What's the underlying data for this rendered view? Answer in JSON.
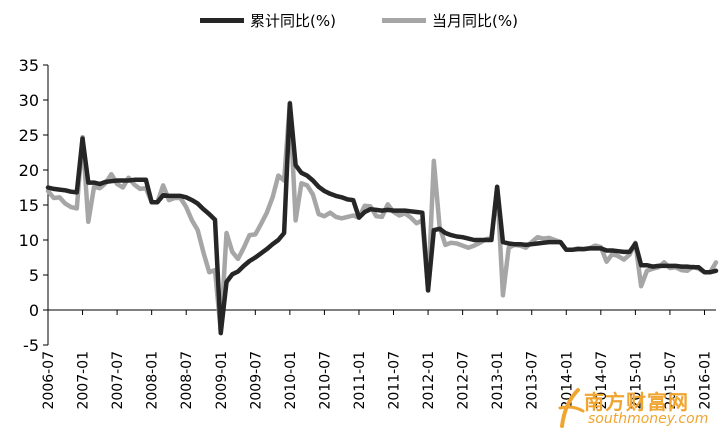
{
  "legend": {
    "series1_label": "累计同比(%)",
    "series2_label": "当月同比(%)"
  },
  "watermark": {
    "name": "南方财富网",
    "url": "southmoney.com"
  },
  "colors": {
    "series1": "#262626",
    "series2": "#a6a6a6",
    "axis": "#000000",
    "watermark": "#f1a531"
  },
  "chart_data": {
    "type": "line",
    "title": "",
    "xlabel": "",
    "ylabel": "",
    "ylim": [
      -5,
      35
    ],
    "yticks": [
      -5,
      0,
      5,
      10,
      15,
      20,
      25,
      30,
      35
    ],
    "grid": false,
    "legend_position": "top",
    "xlim": [
      "2006-07",
      "2016-03"
    ],
    "xticks": [
      "2006-07",
      "2007-01",
      "2007-07",
      "2008-01",
      "2008-07",
      "2009-01",
      "2009-07",
      "2010-01",
      "2010-07",
      "2011-01",
      "2011-07",
      "2012-01",
      "2012-07",
      "2013-01",
      "2013-07",
      "2014-01",
      "2014-07",
      "2015-01",
      "2015-07",
      "2016-01"
    ],
    "series": [
      {
        "name": "累计同比(%)",
        "points": [
          [
            "2006-07",
            17.5
          ],
          [
            "2006-08",
            17.3
          ],
          [
            "2006-09",
            17.2
          ],
          [
            "2006-10",
            17.1
          ],
          [
            "2006-11",
            16.9
          ],
          [
            "2006-12",
            16.8
          ],
          [
            "2007-01",
            24.5
          ],
          [
            "2007-02",
            18.2
          ],
          [
            "2007-03",
            18.2
          ],
          [
            "2007-04",
            18.0
          ],
          [
            "2007-05",
            18.3
          ],
          [
            "2007-06",
            18.4
          ],
          [
            "2007-07",
            18.5
          ],
          [
            "2007-08",
            18.5
          ],
          [
            "2007-09",
            18.5
          ],
          [
            "2007-10",
            18.6
          ],
          [
            "2007-11",
            18.6
          ],
          [
            "2007-12",
            18.6
          ],
          [
            "2008-01",
            15.4
          ],
          [
            "2008-02",
            15.4
          ],
          [
            "2008-03",
            16.4
          ],
          [
            "2008-04",
            16.3
          ],
          [
            "2008-05",
            16.3
          ],
          [
            "2008-06",
            16.3
          ],
          [
            "2008-07",
            16.1
          ],
          [
            "2008-08",
            15.7
          ],
          [
            "2008-09",
            15.2
          ],
          [
            "2008-10",
            14.4
          ],
          [
            "2008-11",
            13.7
          ],
          [
            "2008-12",
            12.9
          ],
          [
            "2009-01",
            -3.3
          ],
          [
            "2009-02",
            4.0
          ],
          [
            "2009-03",
            5.1
          ],
          [
            "2009-04",
            5.5
          ],
          [
            "2009-05",
            6.3
          ],
          [
            "2009-06",
            7.0
          ],
          [
            "2009-07",
            7.5
          ],
          [
            "2009-08",
            8.1
          ],
          [
            "2009-09",
            8.7
          ],
          [
            "2009-10",
            9.4
          ],
          [
            "2009-11",
            10.0
          ],
          [
            "2009-12",
            11.0
          ],
          [
            "2010-01",
            29.5
          ],
          [
            "2010-02",
            20.7
          ],
          [
            "2010-03",
            19.6
          ],
          [
            "2010-04",
            19.2
          ],
          [
            "2010-05",
            18.5
          ],
          [
            "2010-06",
            17.6
          ],
          [
            "2010-07",
            17.0
          ],
          [
            "2010-08",
            16.6
          ],
          [
            "2010-09",
            16.3
          ],
          [
            "2010-10",
            16.1
          ],
          [
            "2010-11",
            15.8
          ],
          [
            "2010-12",
            15.7
          ],
          [
            "2011-01",
            13.2
          ],
          [
            "2011-02",
            14.0
          ],
          [
            "2011-03",
            14.4
          ],
          [
            "2011-04",
            14.3
          ],
          [
            "2011-05",
            14.2
          ],
          [
            "2011-06",
            14.3
          ],
          [
            "2011-07",
            14.2
          ],
          [
            "2011-08",
            14.2
          ],
          [
            "2011-09",
            14.2
          ],
          [
            "2011-10",
            14.1
          ],
          [
            "2011-11",
            14.0
          ],
          [
            "2011-12",
            13.9
          ],
          [
            "2012-01",
            2.8
          ],
          [
            "2012-02",
            11.4
          ],
          [
            "2012-03",
            11.6
          ],
          [
            "2012-04",
            11.0
          ],
          [
            "2012-05",
            10.7
          ],
          [
            "2012-06",
            10.5
          ],
          [
            "2012-07",
            10.4
          ],
          [
            "2012-08",
            10.2
          ],
          [
            "2012-09",
            10.0
          ],
          [
            "2012-10",
            10.0
          ],
          [
            "2012-11",
            10.0
          ],
          [
            "2012-12",
            10.0
          ],
          [
            "2013-01",
            17.6
          ],
          [
            "2013-02",
            9.7
          ],
          [
            "2013-03",
            9.5
          ],
          [
            "2013-04",
            9.4
          ],
          [
            "2013-05",
            9.4
          ],
          [
            "2013-06",
            9.3
          ],
          [
            "2013-07",
            9.4
          ],
          [
            "2013-08",
            9.5
          ],
          [
            "2013-09",
            9.6
          ],
          [
            "2013-10",
            9.7
          ],
          [
            "2013-11",
            9.7
          ],
          [
            "2013-12",
            9.7
          ],
          [
            "2014-01",
            8.6
          ],
          [
            "2014-02",
            8.6
          ],
          [
            "2014-03",
            8.7
          ],
          [
            "2014-04",
            8.7
          ],
          [
            "2014-05",
            8.8
          ],
          [
            "2014-06",
            8.8
          ],
          [
            "2014-07",
            8.8
          ],
          [
            "2014-08",
            8.5
          ],
          [
            "2014-09",
            8.5
          ],
          [
            "2014-10",
            8.4
          ],
          [
            "2014-11",
            8.3
          ],
          [
            "2014-12",
            8.3
          ],
          [
            "2015-01",
            9.5
          ],
          [
            "2015-02",
            6.4
          ],
          [
            "2015-03",
            6.4
          ],
          [
            "2015-04",
            6.2
          ],
          [
            "2015-05",
            6.3
          ],
          [
            "2015-06",
            6.3
          ],
          [
            "2015-07",
            6.3
          ],
          [
            "2015-08",
            6.3
          ],
          [
            "2015-09",
            6.2
          ],
          [
            "2015-10",
            6.2
          ],
          [
            "2015-11",
            6.1
          ],
          [
            "2015-12",
            6.1
          ],
          [
            "2016-01",
            5.4
          ],
          [
            "2016-02",
            5.4
          ],
          [
            "2016-03",
            5.6
          ]
        ]
      },
      {
        "name": "当月同比(%)",
        "points": [
          [
            "2006-07",
            17.0
          ],
          [
            "2006-08",
            16.0
          ],
          [
            "2006-09",
            16.1
          ],
          [
            "2006-10",
            15.2
          ],
          [
            "2006-11",
            14.7
          ],
          [
            "2006-12",
            14.5
          ],
          [
            "2007-01",
            24.7
          ],
          [
            "2007-02",
            12.6
          ],
          [
            "2007-03",
            17.6
          ],
          [
            "2007-04",
            17.4
          ],
          [
            "2007-05",
            18.1
          ],
          [
            "2007-06",
            19.4
          ],
          [
            "2007-07",
            18.0
          ],
          [
            "2007-08",
            17.5
          ],
          [
            "2007-09",
            18.9
          ],
          [
            "2007-10",
            17.9
          ],
          [
            "2007-11",
            17.3
          ],
          [
            "2007-12",
            17.4
          ],
          [
            "2008-01",
            15.4
          ],
          [
            "2008-02",
            15.4
          ],
          [
            "2008-03",
            17.8
          ],
          [
            "2008-04",
            15.7
          ],
          [
            "2008-05",
            16.0
          ],
          [
            "2008-06",
            16.0
          ],
          [
            "2008-07",
            14.7
          ],
          [
            "2008-08",
            12.8
          ],
          [
            "2008-09",
            11.4
          ],
          [
            "2008-10",
            8.2
          ],
          [
            "2008-11",
            5.4
          ],
          [
            "2008-12",
            5.7
          ],
          [
            "2009-01",
            -3.0
          ],
          [
            "2009-02",
            11.0
          ],
          [
            "2009-03",
            8.3
          ],
          [
            "2009-04",
            7.3
          ],
          [
            "2009-05",
            8.9
          ],
          [
            "2009-06",
            10.7
          ],
          [
            "2009-07",
            10.8
          ],
          [
            "2009-08",
            12.3
          ],
          [
            "2009-09",
            13.9
          ],
          [
            "2009-10",
            16.1
          ],
          [
            "2009-11",
            19.2
          ],
          [
            "2009-12",
            18.5
          ],
          [
            "2010-01",
            29.6
          ],
          [
            "2010-02",
            12.8
          ],
          [
            "2010-03",
            18.1
          ],
          [
            "2010-04",
            17.8
          ],
          [
            "2010-05",
            16.5
          ],
          [
            "2010-06",
            13.7
          ],
          [
            "2010-07",
            13.4
          ],
          [
            "2010-08",
            13.9
          ],
          [
            "2010-09",
            13.3
          ],
          [
            "2010-10",
            13.1
          ],
          [
            "2010-11",
            13.3
          ],
          [
            "2010-12",
            13.5
          ],
          [
            "2011-01",
            13.2
          ],
          [
            "2011-02",
            14.9
          ],
          [
            "2011-03",
            14.8
          ],
          [
            "2011-04",
            13.4
          ],
          [
            "2011-05",
            13.3
          ],
          [
            "2011-06",
            15.1
          ],
          [
            "2011-07",
            14.0
          ],
          [
            "2011-08",
            13.5
          ],
          [
            "2011-09",
            13.8
          ],
          [
            "2011-10",
            13.2
          ],
          [
            "2011-11",
            12.4
          ],
          [
            "2011-12",
            12.8
          ],
          [
            "2012-01",
            2.8
          ],
          [
            "2012-02",
            21.3
          ],
          [
            "2012-03",
            11.9
          ],
          [
            "2012-04",
            9.3
          ],
          [
            "2012-05",
            9.6
          ],
          [
            "2012-06",
            9.5
          ],
          [
            "2012-07",
            9.2
          ],
          [
            "2012-08",
            8.9
          ],
          [
            "2012-09",
            9.2
          ],
          [
            "2012-10",
            9.6
          ],
          [
            "2012-11",
            10.1
          ],
          [
            "2012-12",
            10.3
          ],
          [
            "2013-01",
            17.6
          ],
          [
            "2013-02",
            2.1
          ],
          [
            "2013-03",
            8.9
          ],
          [
            "2013-04",
            9.3
          ],
          [
            "2013-05",
            9.2
          ],
          [
            "2013-06",
            8.9
          ],
          [
            "2013-07",
            9.7
          ],
          [
            "2013-08",
            10.4
          ],
          [
            "2013-09",
            10.2
          ],
          [
            "2013-10",
            10.3
          ],
          [
            "2013-11",
            10.0
          ],
          [
            "2013-12",
            9.7
          ],
          [
            "2014-01",
            8.6
          ],
          [
            "2014-02",
            8.6
          ],
          [
            "2014-03",
            8.8
          ],
          [
            "2014-04",
            8.7
          ],
          [
            "2014-05",
            8.8
          ],
          [
            "2014-06",
            9.2
          ],
          [
            "2014-07",
            9.0
          ],
          [
            "2014-08",
            6.9
          ],
          [
            "2014-09",
            8.0
          ],
          [
            "2014-10",
            7.7
          ],
          [
            "2014-11",
            7.2
          ],
          [
            "2014-12",
            7.9
          ],
          [
            "2015-01",
            9.6
          ],
          [
            "2015-02",
            3.4
          ],
          [
            "2015-03",
            5.6
          ],
          [
            "2015-04",
            5.9
          ],
          [
            "2015-05",
            6.1
          ],
          [
            "2015-06",
            6.8
          ],
          [
            "2015-07",
            6.0
          ],
          [
            "2015-08",
            6.1
          ],
          [
            "2015-09",
            5.7
          ],
          [
            "2015-10",
            5.6
          ],
          [
            "2015-11",
            6.2
          ],
          [
            "2015-12",
            5.9
          ],
          [
            "2016-01",
            5.4
          ],
          [
            "2016-02",
            5.4
          ],
          [
            "2016-03",
            6.8
          ]
        ]
      }
    ]
  }
}
